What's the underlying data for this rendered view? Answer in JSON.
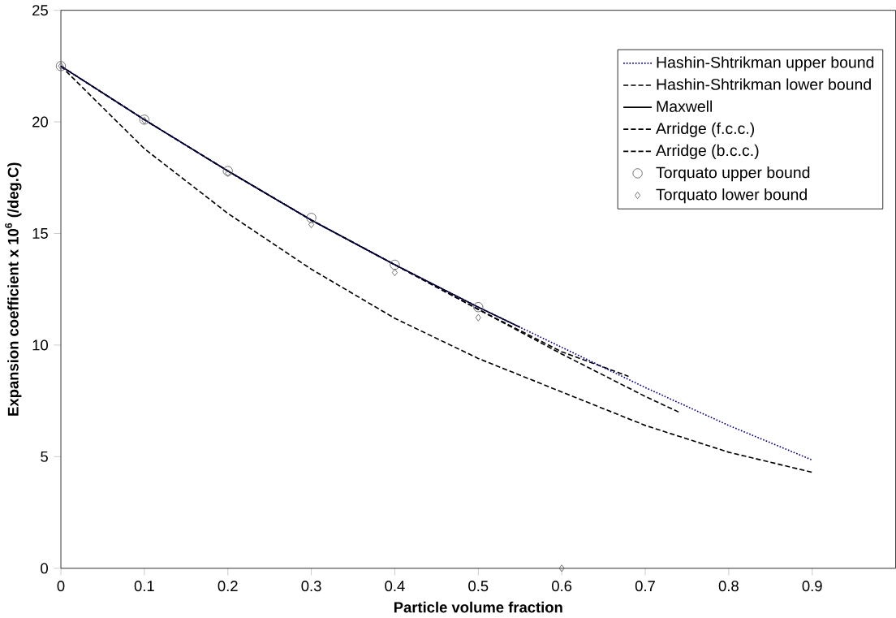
{
  "chart_data": {
    "type": "line",
    "xlabel": "Particle volume fraction",
    "ylabel": "Expansion coefficient x 10$^{6}$ (/deg.C)",
    "xlim": [
      0,
      1
    ],
    "ylim": [
      0,
      25
    ],
    "xticks": [
      0,
      0.1,
      0.2,
      0.3,
      0.4,
      0.5,
      0.6,
      0.7,
      0.8,
      0.9
    ],
    "yticks": [
      0,
      5,
      10,
      15,
      20,
      25
    ],
    "legend": "top right",
    "grid": false,
    "series": [
      {
        "name": "Hashin-Shtrikman upper bound",
        "color": "#00008b",
        "line_style": "dotted",
        "marker": "none",
        "x": [
          0,
          0.1,
          0.2,
          0.3,
          0.4,
          0.5,
          0.6,
          0.7,
          0.8,
          0.9
        ],
        "values": [
          22.5,
          20.1,
          17.8,
          15.6,
          13.6,
          11.7,
          9.9,
          8.1,
          6.4,
          4.85
        ]
      },
      {
        "name": "Hashin-Shtrikman lower bound",
        "color": "#000000",
        "line_style": "dashed",
        "marker": "none",
        "x": [
          0,
          0.1,
          0.2,
          0.3,
          0.4,
          0.5,
          0.6,
          0.7,
          0.8,
          0.9
        ],
        "values": [
          22.5,
          18.8,
          15.9,
          13.4,
          11.2,
          9.4,
          7.9,
          6.4,
          5.2,
          4.3
        ]
      },
      {
        "name": "Maxwell",
        "color": "#000000",
        "line_style": "solid",
        "marker": "none",
        "x": [
          0,
          0.1,
          0.2,
          0.3,
          0.4,
          0.5,
          0.55
        ],
        "values": [
          22.5,
          20.1,
          17.8,
          15.6,
          13.6,
          11.7,
          10.8
        ]
      },
      {
        "name": "Arridge (f.c.c.)",
        "color": "#000000",
        "line_style": "dashed",
        "marker": "none",
        "x": [
          0,
          0.1,
          0.2,
          0.3,
          0.4,
          0.5,
          0.6,
          0.7,
          0.74
        ],
        "values": [
          22.5,
          20.1,
          17.8,
          15.6,
          13.6,
          11.6,
          9.6,
          7.7,
          7.0
        ]
      },
      {
        "name": "Arridge (b.c.c.)",
        "color": "#000000",
        "line_style": "dashed",
        "marker": "none",
        "x": [
          0,
          0.1,
          0.2,
          0.3,
          0.4,
          0.5,
          0.6,
          0.68
        ],
        "values": [
          22.5,
          20.1,
          17.8,
          15.6,
          13.6,
          11.6,
          9.7,
          8.6
        ]
      },
      {
        "name": "Torquato  upper bound",
        "type": "scatter",
        "color": "#555555",
        "marker": "circle",
        "x": [
          0,
          0.1,
          0.2,
          0.3,
          0.4,
          0.5
        ],
        "values": [
          22.5,
          20.1,
          17.8,
          15.7,
          13.6,
          11.7
        ]
      },
      {
        "name": "Torquato lower bound",
        "type": "scatter",
        "color": "#555555",
        "marker": "diamond",
        "x": [
          0,
          0.1,
          0.2,
          0.3,
          0.4,
          0.5,
          0.6
        ],
        "values": [
          22.5,
          20.06,
          17.7,
          15.4,
          13.25,
          11.23,
          0
        ]
      }
    ]
  }
}
